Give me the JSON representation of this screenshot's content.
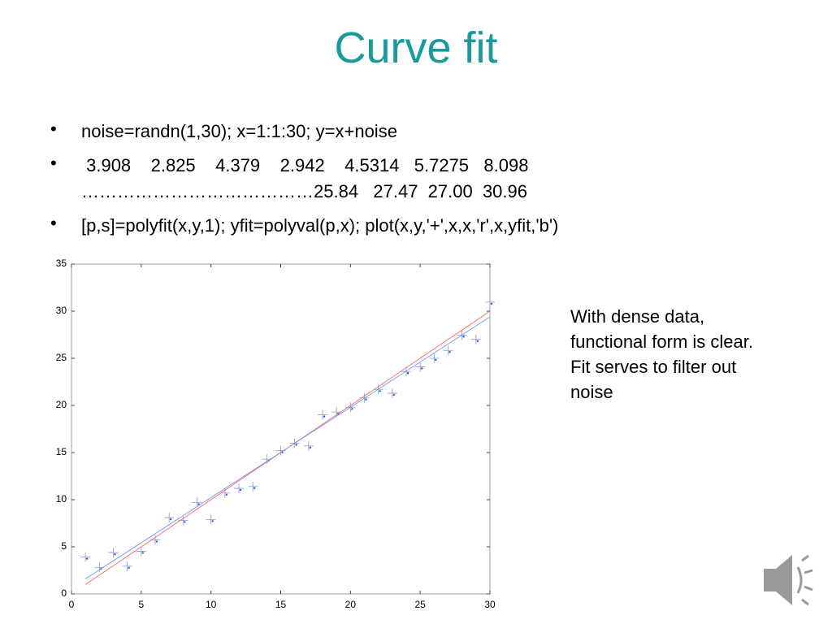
{
  "title": "Curve fit",
  "bullets": [
    [
      "noise=randn(1,30); x=1:1:30; y=x+noise"
    ],
    [
      " 3.908    2.825    4.379    2.942    4.5314   5.7275   8.098",
      "…………………………………25.84   27.47  27.00  30.96"
    ],
    [
      "[p,s]=polyfit(x,y,1); yfit=polyval(p,x); plot(x,y,'+',x,x,'r',x,yfit,'b')"
    ]
  ],
  "note": [
    "With dense data,",
    "functional form is clear.",
    "Fit serves to filter out",
    "noise"
  ],
  "chart_data": {
    "type": "scatter",
    "xlim": [
      0,
      30
    ],
    "ylim": [
      0,
      35
    ],
    "xticks": [
      0,
      5,
      10,
      15,
      20,
      25,
      30
    ],
    "yticks": [
      0,
      5,
      10,
      15,
      20,
      25,
      30,
      35
    ],
    "series": [
      {
        "type": "scatter",
        "color": "#3355dd",
        "x": [
          1,
          2,
          3,
          4,
          5,
          6,
          7,
          8,
          9,
          10,
          11,
          12,
          13,
          14,
          15,
          16,
          17,
          18,
          19,
          20,
          21,
          22,
          23,
          24,
          25,
          26,
          27,
          28,
          29,
          30
        ],
        "values": [
          3.908,
          2.825,
          4.379,
          2.942,
          4.5314,
          5.7275,
          8.098,
          7.8,
          9.7,
          7.9,
          10.7,
          11.2,
          11.4,
          14.3,
          15.2,
          16.0,
          15.7,
          19.0,
          19.3,
          19.8,
          20.8,
          21.7,
          21.3,
          23.6,
          24.1,
          25.0,
          25.84,
          27.47,
          27.0,
          30.96
        ]
      },
      {
        "type": "line",
        "color": "#ff6666",
        "x": [
          1,
          30
        ],
        "values": [
          1,
          30
        ]
      },
      {
        "type": "line",
        "color": "#6699ff",
        "x": [
          1,
          30
        ],
        "values": [
          1.6,
          29.4
        ]
      }
    ]
  }
}
